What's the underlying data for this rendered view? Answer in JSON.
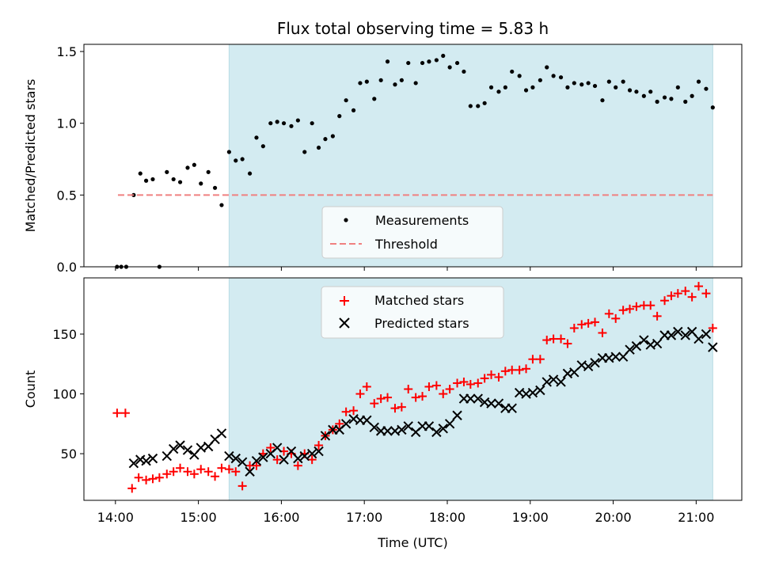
{
  "chart_data": {
    "title": "Flux total observing time = 5.83 h",
    "type": "scatter",
    "shared_x_axis": {
      "label": "Time (UTC)",
      "unit": "hours",
      "range": [
        13.62,
        21.55
      ],
      "ticks": [
        14,
        15,
        16,
        17,
        18,
        19,
        20,
        21
      ],
      "tick_labels": [
        "14:00",
        "15:00",
        "16:00",
        "17:00",
        "18:00",
        "19:00",
        "20:00",
        "21:00"
      ]
    },
    "observing_window": {
      "start": 15.37,
      "end": 21.2,
      "color": "#d3ebf1"
    },
    "panels": [
      {
        "id": "ratio",
        "ylabel": "Matched/Predicted stars",
        "ylim": [
          0,
          1.55
        ],
        "yticks": [
          0,
          0.5,
          1.0,
          1.5
        ],
        "ytick_labels": [
          "0.0",
          "0.5",
          "1.0",
          "1.5"
        ],
        "legend": {
          "placement": "lower-center",
          "entries": [
            "Measurements",
            "Threshold"
          ]
        },
        "threshold": {
          "name": "Threshold",
          "value": 0.5,
          "x_range": [
            14.03,
            21.2
          ],
          "color": "#f08080"
        },
        "series": [
          {
            "name": "Measurements",
            "marker": "dot",
            "color": "#000000",
            "x": [
              14.02,
              14.07,
              14.13,
              14.22,
              14.3,
              14.37,
              14.45,
              14.53,
              14.62,
              14.7,
              14.78,
              14.87,
              14.95,
              15.03,
              15.12,
              15.2,
              15.28,
              15.37,
              15.45,
              15.53,
              15.62,
              15.7,
              15.78,
              15.87,
              15.95,
              16.03,
              16.12,
              16.2,
              16.28,
              16.37,
              16.45,
              16.53,
              16.62,
              16.7,
              16.78,
              16.87,
              16.95,
              17.03,
              17.12,
              17.2,
              17.28,
              17.37,
              17.45,
              17.53,
              17.62,
              17.7,
              17.78,
              17.87,
              17.95,
              18.03,
              18.12,
              18.2,
              18.28,
              18.37,
              18.45,
              18.53,
              18.62,
              18.7,
              18.78,
              18.87,
              18.95,
              19.03,
              19.12,
              19.2,
              19.28,
              19.37,
              19.45,
              19.53,
              19.62,
              19.7,
              19.78,
              19.87,
              19.95,
              20.03,
              20.12,
              20.2,
              20.28,
              20.37,
              20.45,
              20.53,
              20.62,
              20.7,
              20.78,
              20.87,
              20.95,
              21.03,
              21.12,
              21.2
            ],
            "y": [
              0.0,
              0.0,
              0.0,
              0.5,
              0.65,
              0.6,
              0.61,
              0.0,
              0.66,
              0.61,
              0.59,
              0.69,
              0.71,
              0.58,
              0.66,
              0.55,
              0.43,
              0.8,
              0.74,
              0.75,
              0.65,
              0.9,
              0.84,
              1.0,
              1.01,
              1.0,
              0.98,
              1.02,
              0.8,
              1.0,
              0.83,
              0.89,
              0.91,
              1.05,
              1.16,
              1.09,
              1.28,
              1.29,
              1.17,
              1.3,
              1.43,
              1.27,
              1.3,
              1.42,
              1.28,
              1.42,
              1.43,
              1.44,
              1.47,
              1.39,
              1.42,
              1.36,
              1.12,
              1.12,
              1.14,
              1.25,
              1.22,
              1.25,
              1.36,
              1.33,
              1.23,
              1.25,
              1.3,
              1.39,
              1.33,
              1.32,
              1.25,
              1.28,
              1.27,
              1.28,
              1.26,
              1.16,
              1.29,
              1.25,
              1.29,
              1.23,
              1.22,
              1.19,
              1.22,
              1.15,
              1.18,
              1.17,
              1.25,
              1.15,
              1.19,
              1.29,
              1.24,
              1.11
            ]
          }
        ]
      },
      {
        "id": "count",
        "ylabel": "Count",
        "ylim": [
          11,
          197
        ],
        "yticks": [
          50,
          100,
          150
        ],
        "ytick_labels": [
          "50",
          "100",
          "150"
        ],
        "legend": {
          "placement": "upper-center",
          "entries": [
            "Matched stars",
            "Predicted stars"
          ]
        },
        "series": [
          {
            "name": "Matched stars",
            "marker": "plus",
            "color": "#ff0000",
            "x": [
              14.02,
              14.12,
              14.2,
              14.28,
              14.37,
              14.45,
              14.53,
              14.62,
              14.7,
              14.78,
              14.87,
              14.95,
              15.03,
              15.12,
              15.2,
              15.28,
              15.37,
              15.45,
              15.53,
              15.62,
              15.7,
              15.78,
              15.87,
              15.95,
              16.03,
              16.12,
              16.2,
              16.28,
              16.37,
              16.45,
              16.53,
              16.62,
              16.7,
              16.78,
              16.87,
              16.95,
              17.03,
              17.12,
              17.2,
              17.28,
              17.37,
              17.45,
              17.53,
              17.62,
              17.7,
              17.78,
              17.87,
              17.95,
              18.03,
              18.12,
              18.2,
              18.28,
              18.37,
              18.45,
              18.53,
              18.62,
              18.7,
              18.78,
              18.87,
              18.95,
              19.03,
              19.12,
              19.2,
              19.28,
              19.37,
              19.45,
              19.53,
              19.62,
              19.7,
              19.78,
              19.87,
              19.95,
              20.03,
              20.12,
              20.2,
              20.28,
              20.37,
              20.45,
              20.53,
              20.62,
              20.7,
              20.78,
              20.87,
              20.95,
              21.03,
              21.12,
              21.2
            ],
            "y": [
              84,
              84,
              21,
              30,
              28,
              29,
              30,
              33,
              35,
              38,
              35,
              33,
              37,
              35,
              31,
              38,
              37,
              35,
              23,
              40,
              40,
              50,
              55,
              45,
              52,
              50,
              40,
              50,
              45,
              57,
              65,
              70,
              75,
              85,
              86,
              100,
              106,
              92,
              96,
              97,
              88,
              89,
              104,
              97,
              98,
              106,
              107,
              100,
              104,
              109,
              110,
              108,
              109,
              113,
              116,
              114,
              119,
              120,
              120,
              121,
              129,
              129,
              145,
              146,
              146,
              142,
              155,
              158,
              159,
              160,
              151,
              167,
              163,
              170,
              171,
              173,
              174,
              174,
              165,
              178,
              182,
              184,
              186,
              181,
              190,
              184,
              155
            ]
          },
          {
            "name": "Predicted stars",
            "marker": "x",
            "color": "#000000",
            "x": [
              14.22,
              14.3,
              14.37,
              14.45,
              14.62,
              14.7,
              14.78,
              14.87,
              14.95,
              15.03,
              15.12,
              15.2,
              15.28,
              15.37,
              15.45,
              15.53,
              15.62,
              15.7,
              15.78,
              15.87,
              15.95,
              16.03,
              16.12,
              16.2,
              16.28,
              16.37,
              16.45,
              16.53,
              16.62,
              16.7,
              16.78,
              16.87,
              16.95,
              17.03,
              17.12,
              17.2,
              17.28,
              17.37,
              17.45,
              17.53,
              17.62,
              17.7,
              17.78,
              17.87,
              17.95,
              18.03,
              18.12,
              18.2,
              18.28,
              18.37,
              18.45,
              18.53,
              18.62,
              18.7,
              18.78,
              18.87,
              18.95,
              19.03,
              19.12,
              19.2,
              19.28,
              19.37,
              19.45,
              19.53,
              19.62,
              19.7,
              19.78,
              19.87,
              19.95,
              20.03,
              20.12,
              20.2,
              20.28,
              20.37,
              20.45,
              20.53,
              20.62,
              20.7,
              20.78,
              20.87,
              20.95,
              21.03,
              21.12,
              21.2
            ],
            "y": [
              42,
              45,
              44,
              46,
              48,
              54,
              57,
              53,
              49,
              55,
              56,
              62,
              67,
              48,
              46,
              43,
              35,
              44,
              47,
              50,
              55,
              45,
              52,
              46,
              48,
              50,
              52,
              65,
              70,
              70,
              75,
              79,
              78,
              78,
              72,
              69,
              69,
              69,
              70,
              73,
              68,
              73,
              73,
              68,
              71,
              75,
              82,
              96,
              96,
              96,
              93,
              92,
              92,
              88,
              88,
              101,
              100,
              101,
              103,
              110,
              112,
              110,
              117,
              118,
              124,
              123,
              126,
              130,
              130,
              131,
              131,
              137,
              140,
              145,
              141,
              142,
              149,
              149,
              152,
              149,
              152,
              146,
              150,
              139
            ]
          }
        ]
      }
    ]
  }
}
